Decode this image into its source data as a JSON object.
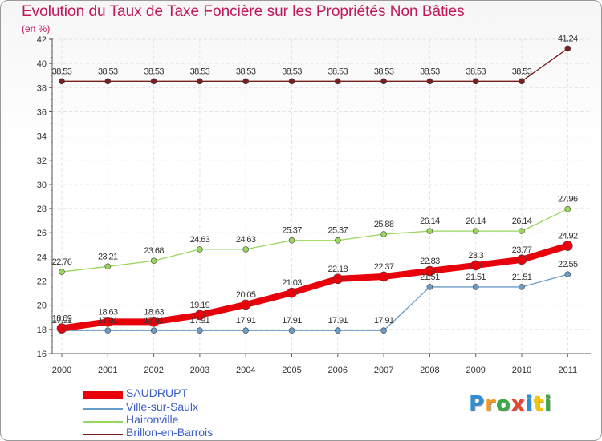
{
  "title": "Evolution du Taux de Taxe Foncière sur les Propriétés Non Bâties",
  "subtitle": "(en %)",
  "brand": {
    "text": "Proxiti",
    "colors": [
      "#2b8fd8",
      "#f39a1d",
      "#39a845",
      "#e8452c",
      "#2b8fd8",
      "#f1c40f",
      "#39a845"
    ]
  },
  "chart_data": {
    "type": "line",
    "categories": [
      "2000",
      "2001",
      "2002",
      "2003",
      "2004",
      "2005",
      "2006",
      "2007",
      "2008",
      "2009",
      "2010",
      "2011"
    ],
    "ylim": [
      16,
      42
    ],
    "yticks": [
      16,
      18,
      20,
      22,
      24,
      26,
      28,
      30,
      32,
      34,
      36,
      38,
      40,
      42
    ],
    "grid": true,
    "legend_position": "bottom-left",
    "series": [
      {
        "name": "Brillon-en-Barrois",
        "color": "#7a1e1e",
        "width": 1.3,
        "marker": 3.5,
        "values": [
          38.53,
          38.53,
          38.53,
          38.53,
          38.53,
          38.53,
          38.53,
          38.53,
          38.53,
          38.53,
          38.53,
          41.24
        ],
        "labels": [
          "38.53",
          "38.53",
          "38.53",
          "38.53",
          "38.53",
          "38.53",
          "38.53",
          "38.53",
          "38.53",
          "38.53",
          "38.53",
          "41.24"
        ]
      },
      {
        "name": "Haironville",
        "color": "#99d65c",
        "width": 1.3,
        "marker": 3.5,
        "values": [
          22.76,
          23.21,
          23.68,
          24.63,
          24.63,
          25.37,
          25.37,
          25.88,
          26.14,
          26.14,
          26.14,
          27.96
        ],
        "labels": [
          "22.76",
          "23.21",
          "23.68",
          "24.63",
          "24.63",
          "25.37",
          "25.37",
          "25.88",
          "26.14",
          "26.14",
          "26.14",
          "27.96"
        ]
      },
      {
        "name": "Ville-sur-Saulx",
        "color": "#6a9cc8",
        "width": 1.3,
        "marker": 3.5,
        "values": [
          17.91,
          17.91,
          17.91,
          17.91,
          17.91,
          17.91,
          17.91,
          17.91,
          21.51,
          21.51,
          21.51,
          22.55
        ],
        "labels": [
          "17.91",
          "17.91",
          "17.91",
          "17.91",
          "17.91",
          "17.91",
          "17.91",
          "17.91",
          "21.51",
          "21.51",
          "21.51",
          "22.55"
        ]
      },
      {
        "name": "SAUDRUPT",
        "color": "#e8000b",
        "width": 8,
        "marker": 6,
        "values": [
          18.09,
          18.63,
          18.63,
          19.19,
          20.05,
          21.03,
          22.18,
          22.37,
          22.83,
          23.3,
          23.77,
          24.92
        ],
        "labels": [
          "18.09",
          "18.63",
          "18.63",
          "19.19",
          "20.05",
          "21.03",
          "22.18",
          "22.37",
          "22.83",
          "23.3",
          "23.77",
          "24.92"
        ]
      }
    ],
    "legend": [
      "SAUDRUPT",
      "Ville-sur-Saulx",
      "Haironville",
      "Brillon-en-Barrois"
    ]
  }
}
